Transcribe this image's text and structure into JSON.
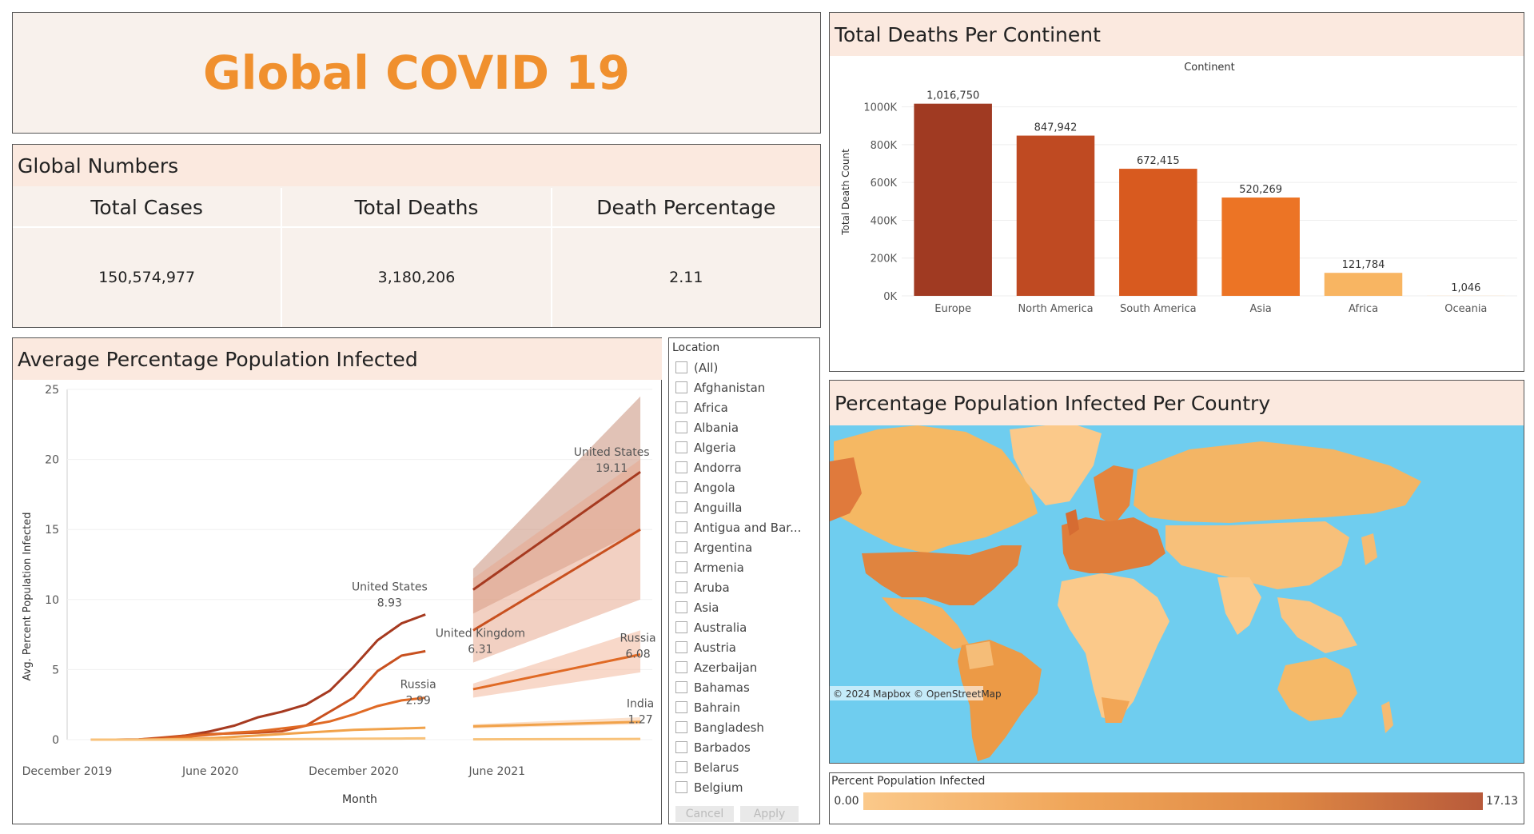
{
  "title": "Global COVID 19",
  "global_numbers": {
    "title": "Global Numbers",
    "headers": [
      "Total Cases",
      "Total Deaths",
      "Death Percentage"
    ],
    "values": [
      "150,574,977",
      "3,180,206",
      "2.11"
    ]
  },
  "line_panel": {
    "title": "Average Percentage Population Infected",
    "annotations": [
      {
        "name": "United States",
        "value": "8.93"
      },
      {
        "name": "United Kingdom",
        "value": "6.31"
      },
      {
        "name": "Russia",
        "value": "2.99"
      },
      {
        "name": "United States",
        "value": "19.11"
      },
      {
        "name": "Russia",
        "value": "6.08"
      },
      {
        "name": "India",
        "value": "1.27"
      }
    ]
  },
  "filter": {
    "label": "Location",
    "items": [
      "(All)",
      "Afghanistan",
      "Africa",
      "Albania",
      "Algeria",
      "Andorra",
      "Angola",
      "Anguilla",
      "Antigua and Bar...",
      "Argentina",
      "Armenia",
      "Aruba",
      "Asia",
      "Australia",
      "Austria",
      "Azerbaijan",
      "Bahamas",
      "Bahrain",
      "Bangladesh",
      "Barbados",
      "Belarus",
      "Belgium"
    ],
    "cancel": "Cancel",
    "apply": "Apply"
  },
  "bar_panel": {
    "title": "Total Deaths Per Continent"
  },
  "map_panel": {
    "title": "Percentage Population Infected Per Country",
    "attribution": "© 2024 Mapbox  © OpenStreetMap"
  },
  "legend": {
    "title": "Percent Population Infected",
    "min": "0.00",
    "max": "17.13",
    "color_low": "#fbc98a",
    "color_high": "#b85a3a"
  },
  "chart_data": [
    {
      "type": "bar",
      "title": "Continent",
      "ylabel": "Total Death Count",
      "categories": [
        "Europe",
        "North America",
        "South America",
        "Asia",
        "Africa",
        "Oceania"
      ],
      "values": [
        1016750,
        847942,
        672415,
        520269,
        121784,
        1046
      ],
      "value_labels": [
        "1,016,750",
        "847,942",
        "672,415",
        "520,269",
        "121,784",
        "1,046"
      ],
      "colors": [
        "#a03a22",
        "#bf4a22",
        "#d85a1f",
        "#ec7425",
        "#f8b562",
        "#fde0bc"
      ],
      "ylim": [
        0,
        1100000
      ],
      "yticks": [
        0,
        200000,
        400000,
        600000,
        800000,
        1000000
      ],
      "ytick_labels": [
        "0K",
        "200K",
        "400K",
        "600K",
        "800K",
        "1000K"
      ]
    },
    {
      "type": "line",
      "xlabel": "Month",
      "ylabel": "Avg. Percent Population Infected",
      "ylim": [
        0,
        25
      ],
      "yticks": [
        0,
        5,
        10,
        15,
        20,
        25
      ],
      "xticks": [
        "December 2019",
        "June 2020",
        "December 2020",
        "June 2021"
      ],
      "x": [
        "2020-01",
        "2020-02",
        "2020-03",
        "2020-04",
        "2020-05",
        "2020-06",
        "2020-07",
        "2020-08",
        "2020-09",
        "2020-10",
        "2020-11",
        "2020-12",
        "2021-01",
        "2021-02",
        "2021-03",
        "2021-04"
      ],
      "series": [
        {
          "name": "United States",
          "color": "#a63a20",
          "values": [
            0,
            0,
            0.01,
            0.1,
            0.3,
            0.6,
            1.0,
            1.6,
            2.0,
            2.5,
            3.5,
            5.2,
            7.1,
            8.3,
            8.93,
            null
          ]
        },
        {
          "name": "United Kingdom",
          "color": "#c8501f",
          "values": [
            0,
            0,
            0.01,
            0.15,
            0.3,
            0.4,
            0.45,
            0.5,
            0.6,
            1.0,
            2.0,
            3.0,
            4.9,
            6.0,
            6.31,
            null
          ]
        },
        {
          "name": "Russia",
          "color": "#e06a25",
          "values": [
            0,
            0,
            0,
            0.05,
            0.2,
            0.35,
            0.5,
            0.6,
            0.8,
            1.0,
            1.3,
            1.8,
            2.4,
            2.8,
            2.99,
            null
          ]
        },
        {
          "name": "",
          "color": "#f1a24a",
          "values": [
            0,
            0,
            0,
            0.01,
            0.05,
            0.1,
            0.2,
            0.3,
            0.4,
            0.5,
            0.6,
            0.7,
            0.75,
            0.8,
            0.85,
            null
          ]
        },
        {
          "name": "",
          "color": "#f8c27a",
          "values": [
            0,
            0,
            0,
            0,
            0,
            0,
            0.01,
            0.02,
            0.03,
            0.04,
            0.05,
            0.06,
            0.07,
            0.08,
            0.09,
            null
          ]
        }
      ],
      "forecast": {
        "x": [
          "2021-05",
          "2021-12"
        ],
        "series": [
          {
            "name": "United States",
            "start": 10.7,
            "end": 19.11,
            "band_start": [
              9,
              12.2
            ],
            "band_end": [
              15,
              24.5
            ]
          },
          {
            "name": "",
            "start": 7.8,
            "end": 15.0,
            "band_start": [
              5.5,
              11.5
            ],
            "band_end": [
              10,
              20
            ]
          },
          {
            "name": "Russia",
            "start": 3.6,
            "end": 6.08,
            "band_start": [
              3.0,
              4.0
            ],
            "band_end": [
              4.8,
              7.8
            ]
          },
          {
            "name": "India",
            "start": 0.95,
            "end": 1.27,
            "band_start": [
              0.8,
              1.1
            ],
            "band_end": [
              1.1,
              1.6
            ]
          },
          {
            "name": "",
            "start": 0.02,
            "end": 0.05,
            "band_start": [
              0,
              0.05
            ],
            "band_end": [
              0,
              0.1
            ]
          }
        ]
      }
    }
  ]
}
